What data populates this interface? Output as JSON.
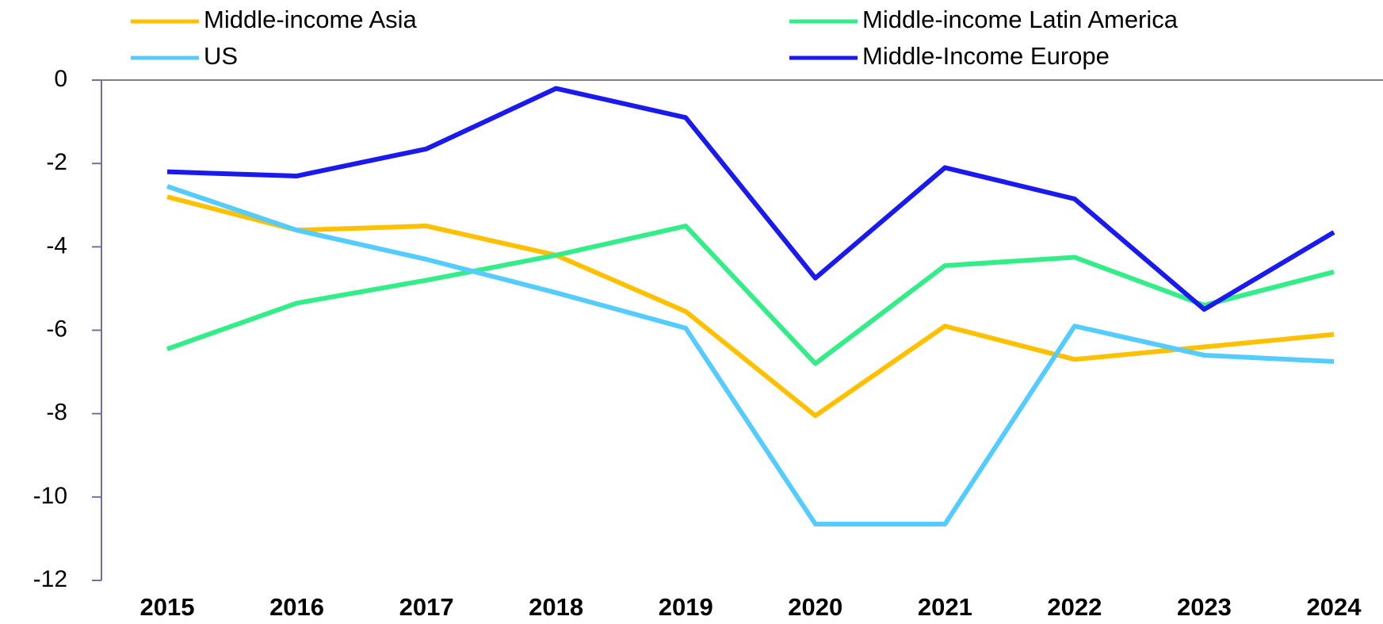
{
  "chart_data": {
    "type": "line",
    "categories": [
      "2015",
      "2016",
      "2017",
      "2018",
      "2019",
      "2020",
      "2021",
      "2022",
      "2023",
      "2024"
    ],
    "series": [
      {
        "name": "Middle-income Asia",
        "color": "#ffc000",
        "values": [
          -2.8,
          -3.6,
          -3.5,
          -4.2,
          -5.55,
          -8.05,
          -5.9,
          -6.7,
          -6.4,
          -6.1
        ]
      },
      {
        "name": "Middle-income Latin America",
        "color": "#33ee88",
        "values": [
          -6.45,
          -5.35,
          -4.8,
          -4.2,
          -3.5,
          -6.8,
          -4.45,
          -4.25,
          -5.4,
          -4.6
        ]
      },
      {
        "name": "US",
        "color": "#55ccff",
        "values": [
          -2.55,
          -3.6,
          -4.3,
          -5.1,
          -5.95,
          -10.65,
          -10.65,
          -5.9,
          -6.6,
          -6.75
        ]
      },
      {
        "name": "Middle-Income Europe",
        "color": "#1a1aee",
        "values": [
          -2.2,
          -2.3,
          -1.65,
          -0.2,
          -0.9,
          -4.75,
          -2.1,
          -2.85,
          -5.5,
          -3.65
        ]
      }
    ],
    "ylim": [
      -12,
      0
    ],
    "yticks": [
      0,
      -2,
      -4,
      -6,
      -8,
      -10,
      -12
    ]
  }
}
